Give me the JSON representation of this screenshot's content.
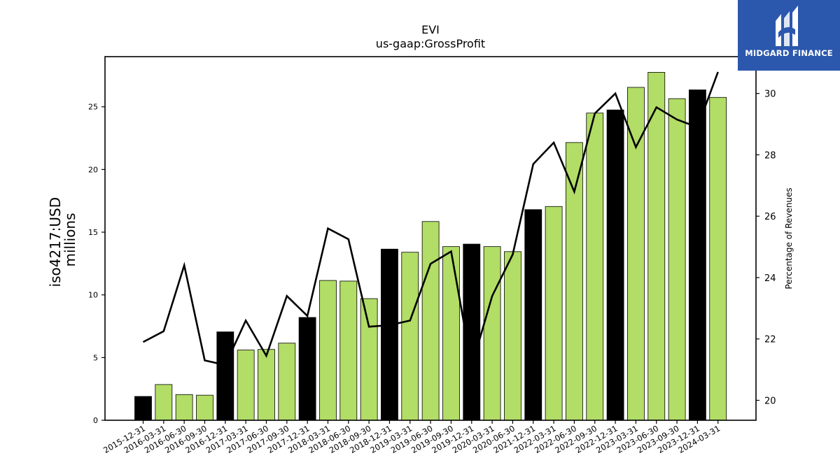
{
  "brand": {
    "name": "MIDGARD FINANCE",
    "bg_color": "#2b57ad"
  },
  "chart_data": {
    "type": "bar",
    "title": "EVI",
    "subtitle": "us-gaap:GrossProfit",
    "ylabel": "iso4217:USD\nmillions",
    "y2label": "Percentage of Revenues",
    "ylim": [
      0,
      29
    ],
    "y2lim": [
      19.35,
      31.2
    ],
    "yticks": [
      0,
      5,
      10,
      15,
      20,
      25
    ],
    "y2ticks": [
      20,
      22,
      24,
      26,
      28,
      30
    ],
    "categories": [
      "2015-12-31",
      "2016-03-31",
      "2016-06-30",
      "2016-09-30",
      "2016-12-31",
      "2017-03-31",
      "2017-06-30",
      "2017-09-30",
      "2017-12-31",
      "2018-03-31",
      "2018-06-30",
      "2018-09-30",
      "2018-12-31",
      "2019-03-31",
      "2019-06-30",
      "2019-09-30",
      "2019-12-31",
      "2020-03-31",
      "2020-06-30",
      "2021-12-31",
      "2022-03-31",
      "2022-06-30",
      "2022-09-30",
      "2022-12-31",
      "2023-03-31",
      "2023-06-30",
      "2023-09-30",
      "2023-12-31",
      "2024-03-31"
    ],
    "series": [
      {
        "axis": "left",
        "kind": "bar",
        "values": [
          1.9,
          2.85,
          2.05,
          2.0,
          7.05,
          5.6,
          5.65,
          6.15,
          8.2,
          11.15,
          11.1,
          9.7,
          13.65,
          13.4,
          15.85,
          13.85,
          14.05,
          13.85,
          13.45,
          16.8,
          17.05,
          22.15,
          24.5,
          24.75,
          26.55,
          27.75,
          25.65,
          26.35,
          25.75
        ],
        "annual_flags": [
          true,
          false,
          false,
          false,
          true,
          false,
          false,
          false,
          true,
          false,
          false,
          false,
          true,
          false,
          false,
          false,
          true,
          false,
          false,
          true,
          false,
          false,
          false,
          true,
          false,
          false,
          false,
          true,
          false
        ],
        "colors": {
          "annual": "#000000",
          "quarterly": "#b2dd66"
        }
      },
      {
        "axis": "right",
        "kind": "line",
        "color": "#000000",
        "values": [
          21.9,
          22.25,
          24.4,
          21.3,
          21.15,
          22.6,
          21.45,
          23.4,
          22.75,
          25.6,
          25.25,
          22.4,
          22.45,
          22.6,
          24.45,
          24.85,
          21.1,
          23.4,
          24.75,
          27.7,
          28.4,
          26.8,
          29.35,
          30.0,
          28.25,
          29.55,
          29.15,
          28.9,
          30.7
        ]
      }
    ]
  }
}
